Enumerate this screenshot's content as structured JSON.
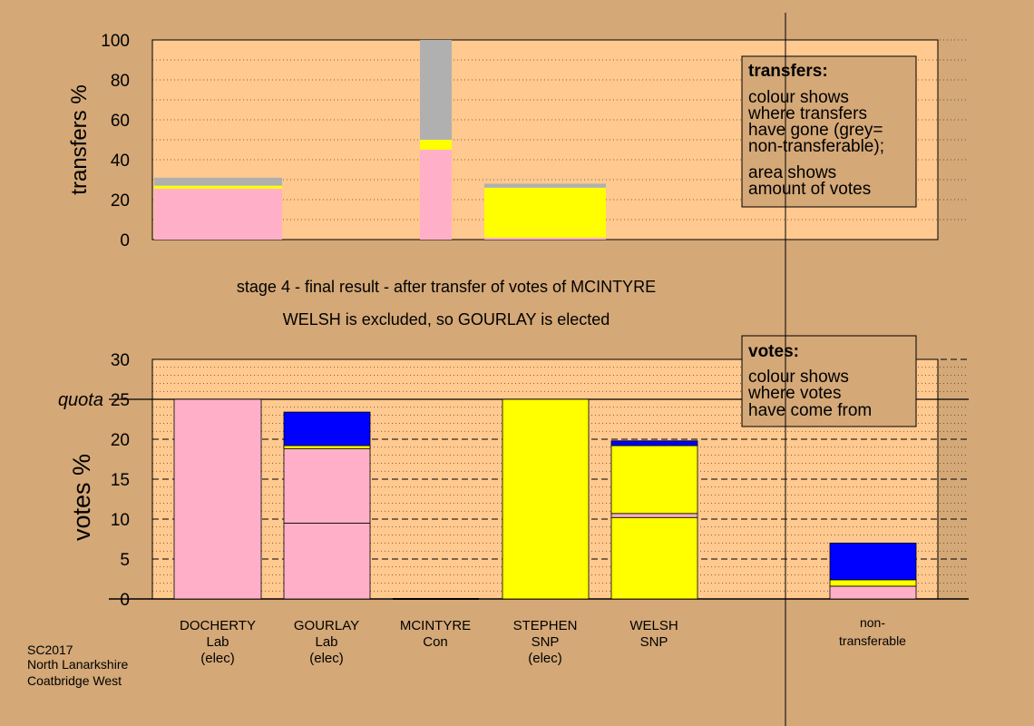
{
  "stage_line1": "stage 4 - final result - after transfer of votes of MCINTYRE",
  "stage_line2": "WELSH is excluded, so GOURLAY is elected",
  "footer": [
    "SC2017",
    "North Lanarkshire",
    "Coatbridge West"
  ],
  "colors": {
    "background": "#d4a877",
    "plot_bg": "#ffc98f",
    "legend_box": "#d4a877",
    "Lab": "#ffb0c8",
    "SNP": "#ffff00",
    "Con": "#0000ff",
    "non_transferable": "#b0b0b0"
  },
  "chart_data": [
    {
      "type": "bar",
      "stacked": true,
      "ylabel": "transfers %",
      "ylim": [
        0,
        100
      ],
      "yticks": [
        0,
        20,
        40,
        60,
        80,
        100
      ],
      "legend": {
        "title": "transfers:",
        "lines": [
          "colour shows",
          "where transfers",
          "have gone (grey=",
          "non-transferable);",
          "area shows",
          "amount of votes"
        ]
      },
      "columns": [
        {
          "segments": [
            {
              "color": "Lab",
              "value": 25.5
            },
            {
              "color": "SNP",
              "value": 1.5
            },
            {
              "color": "non_transferable",
              "value": 4
            }
          ]
        },
        {
          "segments": [
            {
              "color": "Lab",
              "value": 45
            },
            {
              "color": "SNP",
              "value": 5
            },
            {
              "color": "non_transferable",
              "value": 50
            }
          ]
        },
        {
          "segments": [
            {
              "color": "Lab",
              "value": 1
            },
            {
              "color": "SNP",
              "value": 25
            },
            {
              "color": "non_transferable",
              "value": 2
            }
          ]
        }
      ]
    },
    {
      "type": "bar",
      "stacked": true,
      "ylabel": "votes %",
      "ylim": [
        0,
        30
      ],
      "yticks": [
        0,
        5,
        10,
        15,
        20,
        25,
        30
      ],
      "quota": 25,
      "quota_label": "quota",
      "legend": {
        "title": "votes:",
        "lines": [
          "colour shows",
          "where votes",
          "have come from"
        ]
      },
      "categories": [
        {
          "name": "DOCHERTY",
          "party": "Lab",
          "status": "(elec)"
        },
        {
          "name": "GOURLAY",
          "party": "Lab",
          "status": "(elec)"
        },
        {
          "name": "MCINTYRE",
          "party": "Con",
          "status": ""
        },
        {
          "name": "STEPHEN",
          "party": "SNP",
          "status": "(elec)"
        },
        {
          "name": "WELSH",
          "party": "SNP",
          "status": ""
        }
      ],
      "nontransferable_label": [
        "non-",
        "transferable"
      ],
      "stacks": [
        [
          {
            "color": "Lab",
            "value": 25
          }
        ],
        [
          {
            "color": "Lab",
            "value": 9.5
          },
          {
            "color": "Lab",
            "value": 9.3
          },
          {
            "color": "SNP",
            "value": 0.4
          },
          {
            "color": "Con",
            "value": 4.2
          }
        ],
        [],
        [
          {
            "color": "SNP",
            "value": 25
          }
        ],
        [
          {
            "color": "SNP",
            "value": 10.2
          },
          {
            "color": "Lab",
            "value": 0.5
          },
          {
            "color": "SNP",
            "value": 8.5
          },
          {
            "color": "Con",
            "value": 0.6
          }
        ],
        [
          {
            "color": "Lab",
            "value": 1.6
          },
          {
            "color": "SNP",
            "value": 0.8
          },
          {
            "color": "Con",
            "value": 4.6
          }
        ]
      ]
    }
  ]
}
